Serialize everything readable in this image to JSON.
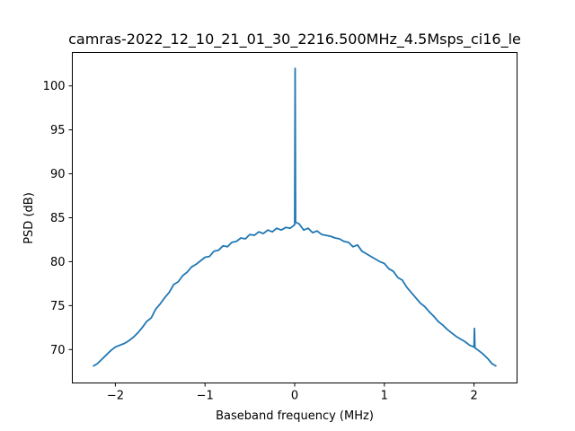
{
  "chart_data": {
    "type": "line",
    "title": "camras-2022_12_10_21_01_30_2216.500MHz_4.5Msps_ci16_le",
    "xlabel": "Baseband frequency (MHz)",
    "ylabel": "PSD (dB)",
    "xlim": [
      -2.48,
      2.48
    ],
    "ylim": [
      66.2,
      103.8
    ],
    "xticks": [
      -2,
      -1,
      0,
      1,
      2
    ],
    "xtick_labels": [
      "−2",
      "−1",
      "0",
      "1",
      "2"
    ],
    "yticks": [
      70,
      75,
      80,
      85,
      90,
      95,
      100
    ],
    "ytick_labels": [
      "70",
      "75",
      "80",
      "85",
      "90",
      "95",
      "100"
    ],
    "grid": false,
    "series": [
      {
        "name": "PSD",
        "color": "#1f77b4",
        "x": [
          -2.25,
          -2.2,
          -2.15,
          -2.1,
          -2.05,
          -2.0,
          -1.95,
          -1.9,
          -1.85,
          -1.8,
          -1.75,
          -1.7,
          -1.65,
          -1.6,
          -1.55,
          -1.5,
          -1.45,
          -1.4,
          -1.35,
          -1.3,
          -1.25,
          -1.2,
          -1.15,
          -1.1,
          -1.05,
          -1.0,
          -0.95,
          -0.9,
          -0.85,
          -0.8,
          -0.75,
          -0.7,
          -0.65,
          -0.6,
          -0.55,
          -0.5,
          -0.45,
          -0.4,
          -0.35,
          -0.3,
          -0.25,
          -0.2,
          -0.15,
          -0.1,
          -0.05,
          0.0,
          0.005,
          0.01,
          0.05,
          0.1,
          0.15,
          0.2,
          0.25,
          0.3,
          0.35,
          0.4,
          0.45,
          0.5,
          0.55,
          0.6,
          0.65,
          0.7,
          0.75,
          0.8,
          0.85,
          0.9,
          0.95,
          1.0,
          1.05,
          1.1,
          1.15,
          1.2,
          1.25,
          1.3,
          1.35,
          1.4,
          1.45,
          1.5,
          1.55,
          1.6,
          1.65,
          1.7,
          1.75,
          1.8,
          1.85,
          1.9,
          1.95,
          2.0,
          2.005,
          2.01,
          2.05,
          2.1,
          2.15,
          2.2,
          2.25
        ],
        "y": [
          68.1,
          68.4,
          68.9,
          69.4,
          69.9,
          70.3,
          70.5,
          70.7,
          71.0,
          71.4,
          71.9,
          72.5,
          73.2,
          73.6,
          74.6,
          75.2,
          75.9,
          76.5,
          77.4,
          77.7,
          78.4,
          78.8,
          79.4,
          79.7,
          80.1,
          80.5,
          80.6,
          81.2,
          81.3,
          81.8,
          81.7,
          82.2,
          82.3,
          82.7,
          82.6,
          83.1,
          83.0,
          83.4,
          83.2,
          83.6,
          83.4,
          83.8,
          83.6,
          83.9,
          83.8,
          84.2,
          102.0,
          84.5,
          84.3,
          83.6,
          83.8,
          83.3,
          83.5,
          83.1,
          83.0,
          82.9,
          82.7,
          82.6,
          82.3,
          82.2,
          81.7,
          81.9,
          81.2,
          80.9,
          80.6,
          80.3,
          80.0,
          79.8,
          79.2,
          78.9,
          78.2,
          77.9,
          77.1,
          76.5,
          75.9,
          75.3,
          74.9,
          74.3,
          73.8,
          73.2,
          72.8,
          72.3,
          71.9,
          71.5,
          71.2,
          70.9,
          70.5,
          70.3,
          72.4,
          70.2,
          69.9,
          69.5,
          69.0,
          68.4,
          68.1
        ]
      }
    ]
  }
}
